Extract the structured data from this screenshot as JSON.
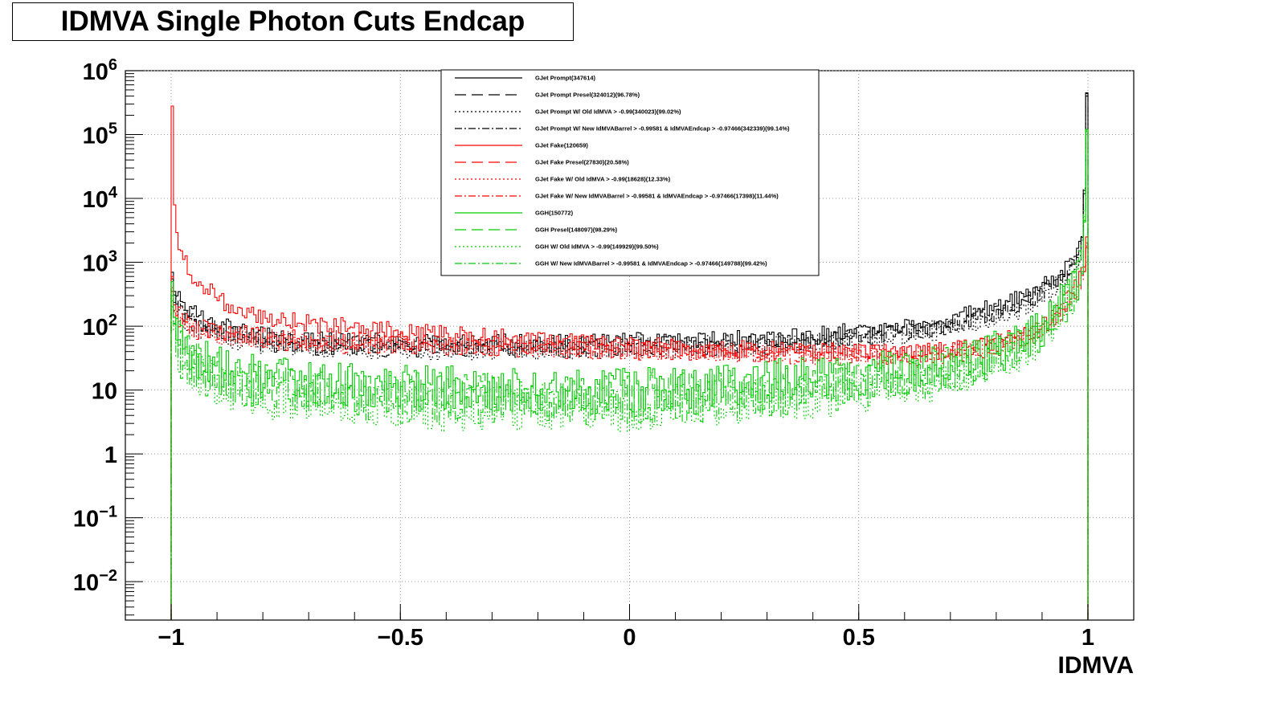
{
  "title": "IDMVA Single Photon Cuts Endcap",
  "chart_data": {
    "type": "line",
    "title": "IDMVA Single Photon Cuts Endcap",
    "xlabel": "IDMVA",
    "ylabel": "",
    "xlim": [
      -1.1,
      1.1
    ],
    "ylim": [
      0.0025,
      1000000
    ],
    "yscale": "log",
    "grid": true,
    "legend_position": "top-center",
    "x_ticks": [
      {
        "value": -1,
        "label": "−1"
      },
      {
        "value": -0.5,
        "label": "−0.5"
      },
      {
        "value": 0,
        "label": "0"
      },
      {
        "value": 0.5,
        "label": "0.5"
      },
      {
        "value": 1,
        "label": "1"
      }
    ],
    "y_ticks": [
      {
        "value": 0.01,
        "base": "10",
        "exp": "−2"
      },
      {
        "value": 0.1,
        "base": "10",
        "exp": "−1"
      },
      {
        "value": 1,
        "base": "1",
        "exp": ""
      },
      {
        "value": 10,
        "base": "10",
        "exp": ""
      },
      {
        "value": 100,
        "base": "10",
        "exp": "2"
      },
      {
        "value": 1000,
        "base": "10",
        "exp": "3"
      },
      {
        "value": 10000,
        "base": "10",
        "exp": "4"
      },
      {
        "value": 100000,
        "base": "10",
        "exp": "5"
      },
      {
        "value": 1000000,
        "base": "10",
        "exp": "6"
      }
    ],
    "series": [
      {
        "name": "GJet Prompt(347614)",
        "color": "#000000",
        "dash": "solid",
        "x": [
          -1.0,
          -0.98,
          -0.95,
          -0.9,
          -0.85,
          -0.8,
          -0.7,
          -0.5,
          -0.2,
          0.0,
          0.2,
          0.4,
          0.5,
          0.6,
          0.7,
          0.8,
          0.85,
          0.9,
          0.93,
          0.96,
          0.98,
          0.99,
          1.0
        ],
        "y": [
          700,
          260,
          160,
          110,
          85,
          70,
          60,
          55,
          55,
          58,
          60,
          70,
          85,
          100,
          130,
          200,
          270,
          400,
          560,
          900,
          1700,
          4000,
          450000
        ]
      },
      {
        "name": "GJet Prompt Presel(324012)(96.78%)",
        "color": "#000000",
        "dash": "dash",
        "x": [
          -1.0,
          -0.98,
          -0.95,
          -0.9,
          -0.85,
          -0.8,
          -0.7,
          -0.5,
          -0.2,
          0.0,
          0.2,
          0.4,
          0.5,
          0.6,
          0.7,
          0.8,
          0.85,
          0.9,
          0.93,
          0.96,
          0.98,
          0.99,
          1.0
        ],
        "y": [
          450,
          170,
          110,
          80,
          65,
          55,
          48,
          44,
          44,
          46,
          48,
          55,
          68,
          80,
          105,
          165,
          220,
          330,
          460,
          740,
          1400,
          3200,
          400000
        ]
      },
      {
        "name": "GJet Prompt W/ Old IdMVA > -0.99(340023)(99.02%)",
        "color": "#000000",
        "dash": "dot",
        "x": [
          -1.0,
          -0.98,
          -0.95,
          -0.9,
          -0.85,
          -0.8,
          -0.7,
          -0.5,
          -0.2,
          0.0,
          0.2,
          0.4,
          0.5,
          0.6,
          0.7,
          0.8,
          0.85,
          0.9,
          0.93,
          0.96,
          0.98,
          0.99,
          1.0
        ],
        "y": [
          300,
          130,
          90,
          70,
          58,
          50,
          44,
          40,
          40,
          42,
          44,
          50,
          60,
          70,
          90,
          135,
          180,
          260,
          360,
          560,
          1000,
          2400,
          420000
        ]
      },
      {
        "name": "GJet Prompt W/ New IdMVABarrel > -0.99581 & IdMVAEndcap > -0.97466(342339)(99.14%)",
        "color": "#000000",
        "dash": "dashdot",
        "x": [
          -1.0,
          -0.98,
          -0.95,
          -0.9,
          -0.85,
          -0.8,
          -0.7,
          -0.5,
          -0.2,
          0.0,
          0.2,
          0.4,
          0.5,
          0.6,
          0.7,
          0.8,
          0.85,
          0.9,
          0.93,
          0.96,
          0.98,
          0.99,
          1.0
        ],
        "y": [
          550,
          200,
          130,
          90,
          72,
          60,
          52,
          48,
          48,
          50,
          52,
          60,
          72,
          85,
          110,
          170,
          230,
          340,
          480,
          760,
          1400,
          3300,
          440000
        ]
      },
      {
        "name": "GJet Fake(120659)",
        "color": "#ff0000",
        "dash": "solid",
        "x": [
          -1.0,
          -0.99,
          -0.98,
          -0.96,
          -0.93,
          -0.9,
          -0.85,
          -0.8,
          -0.7,
          -0.6,
          -0.4,
          -0.2,
          0.0,
          0.2,
          0.4,
          0.6,
          0.7,
          0.8,
          0.85,
          0.9,
          0.93,
          0.96,
          0.98,
          0.99,
          1.0
        ],
        "y": [
          280000,
          3000,
          1500,
          700,
          420,
          280,
          180,
          140,
          110,
          95,
          75,
          60,
          50,
          45,
          40,
          38,
          42,
          55,
          70,
          100,
          170,
          300,
          500,
          900,
          2500
        ]
      },
      {
        "name": "GJet Fake Presel(27830)(20.58%)",
        "color": "#ff0000",
        "dash": "dash",
        "x": [
          -1.0,
          -0.99,
          -0.98,
          -0.96,
          -0.93,
          -0.9,
          -0.85,
          -0.8,
          -0.7,
          -0.6,
          -0.4,
          -0.2,
          0.0,
          0.2,
          0.4,
          0.6,
          0.7,
          0.8,
          0.85,
          0.9,
          0.93,
          0.96,
          0.98,
          0.99,
          1.0
        ],
        "y": [
          600,
          180,
          140,
          110,
          95,
          85,
          75,
          70,
          65,
          60,
          55,
          50,
          45,
          42,
          38,
          36,
          40,
          52,
          65,
          90,
          150,
          250,
          420,
          700,
          2000
        ]
      },
      {
        "name": "GJet Fake W/ Old IdMVA > -0.99(18628)(12.33%)",
        "color": "#ff0000",
        "dash": "dot",
        "x": [
          -1.0,
          -0.99,
          -0.98,
          -0.96,
          -0.93,
          -0.9,
          -0.85,
          -0.8,
          -0.7,
          -0.6,
          -0.4,
          -0.2,
          0.0,
          0.2,
          0.4,
          0.6,
          0.7,
          0.8,
          0.85,
          0.9,
          0.93,
          0.96,
          0.98,
          0.99,
          1.0
        ],
        "y": [
          400,
          150,
          120,
          95,
          82,
          74,
          66,
          62,
          58,
          54,
          50,
          46,
          42,
          40,
          36,
          34,
          38,
          48,
          60,
          85,
          140,
          230,
          380,
          650,
          1800
        ]
      },
      {
        "name": "GJet Fake W/ New IdMVABarrel > -0.99581 & IdMVAEndcap > -0.97466(17398)(11.44%)",
        "color": "#ff0000",
        "dash": "dashdot",
        "x": [
          -1.0,
          -0.99,
          -0.98,
          -0.96,
          -0.93,
          -0.9,
          -0.85,
          -0.8,
          -0.7,
          -0.6,
          -0.4,
          -0.2,
          0.0,
          0.2,
          0.4,
          0.6,
          0.7,
          0.8,
          0.85,
          0.9,
          0.93,
          0.96,
          0.98,
          0.99,
          1.0
        ],
        "y": [
          350,
          140,
          110,
          90,
          78,
          70,
          62,
          58,
          54,
          50,
          46,
          43,
          40,
          38,
          34,
          32,
          36,
          46,
          58,
          80,
          130,
          220,
          360,
          600,
          1700
        ]
      },
      {
        "name": "GGH(150772)",
        "color": "#00cc00",
        "dash": "solid",
        "x": [
          -1.0,
          -0.99,
          -0.98,
          -0.96,
          -0.93,
          -0.9,
          -0.85,
          -0.8,
          -0.6,
          -0.4,
          -0.2,
          0.0,
          0.2,
          0.4,
          0.6,
          0.7,
          0.8,
          0.85,
          0.9,
          0.93,
          0.96,
          0.98,
          0.99,
          1.0
        ],
        "y": [
          500,
          90,
          60,
          40,
          30,
          22,
          18,
          15,
          12,
          11,
          10,
          10,
          12,
          15,
          20,
          25,
          40,
          55,
          90,
          160,
          300,
          600,
          1500,
          120000
        ]
      },
      {
        "name": "GGH Presel(148097)(98.29%)",
        "color": "#00cc00",
        "dash": "dash",
        "x": [
          -1.0,
          -0.99,
          -0.98,
          -0.96,
          -0.93,
          -0.9,
          -0.85,
          -0.8,
          -0.6,
          -0.4,
          -0.2,
          0.0,
          0.2,
          0.4,
          0.6,
          0.7,
          0.8,
          0.85,
          0.9,
          0.93,
          0.96,
          0.98,
          0.99,
          1.0
        ],
        "y": [
          300,
          70,
          45,
          32,
          24,
          18,
          15,
          12,
          10,
          9,
          8,
          8,
          10,
          12,
          17,
          22,
          35,
          50,
          80,
          140,
          270,
          550,
          1300,
          110000
        ]
      },
      {
        "name": "GGH W/ Old IdMVA > -0.99(149929)(99.50%)",
        "color": "#00cc00",
        "dash": "dot",
        "x": [
          -1.0,
          -0.99,
          -0.98,
          -0.96,
          -0.93,
          -0.9,
          -0.85,
          -0.8,
          -0.6,
          -0.4,
          -0.2,
          0.0,
          0.2,
          0.4,
          0.6,
          0.7,
          0.8,
          0.85,
          0.9,
          0.93,
          0.96,
          0.98,
          0.99,
          1.0
        ],
        "y": [
          200,
          50,
          30,
          20,
          15,
          12,
          10,
          8,
          6,
          5,
          5,
          5,
          6,
          8,
          12,
          16,
          28,
          42,
          70,
          120,
          240,
          500,
          1200,
          115000
        ]
      },
      {
        "name": "GGH W/ New IdMVABarrel > -0.99581 & IdMVAEndcap > -0.97466(149788)(99.42%)",
        "color": "#00cc00",
        "dash": "dashdot",
        "x": [
          -1.0,
          -0.99,
          -0.98,
          -0.96,
          -0.93,
          -0.9,
          -0.85,
          -0.8,
          -0.6,
          -0.4,
          -0.2,
          0.0,
          0.2,
          0.4,
          0.6,
          0.7,
          0.8,
          0.85,
          0.9,
          0.93,
          0.96,
          0.98,
          0.99,
          1.0
        ],
        "y": [
          250,
          55,
          35,
          24,
          18,
          14,
          12,
          10,
          7,
          6,
          6,
          6,
          7,
          9,
          13,
          18,
          30,
          45,
          75,
          130,
          250,
          520,
          1250,
          112000
        ]
      }
    ]
  }
}
